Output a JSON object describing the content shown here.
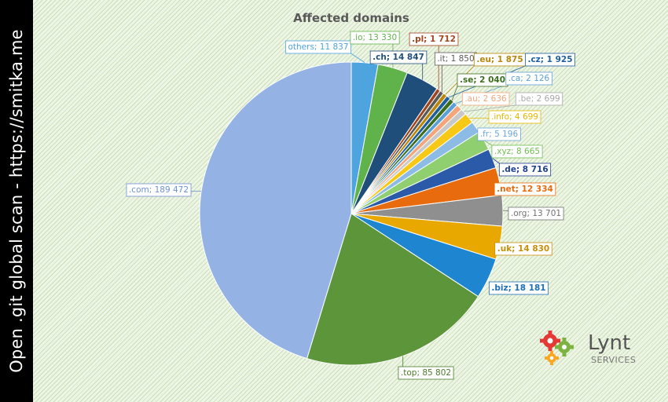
{
  "watermark": "Open .git global scan - https://smitka.me",
  "logo": {
    "word": "Lynt",
    "sub": "SERVICES",
    "icon": "gears-icon"
  },
  "chart_data": {
    "type": "pie",
    "title": "Affected domains",
    "legend": "none",
    "data_label_format": "name; value",
    "slices": [
      {
        "name": "others",
        "value": 11837,
        "color": "#4ea4de",
        "label_color": "#4ea4de",
        "bold": false
      },
      {
        "name": ".io",
        "value": 13330,
        "color": "#5fb34a",
        "label_color": "#5fb34a",
        "bold": false
      },
      {
        "name": ".ch",
        "value": 14847,
        "color": "#1f4e7a",
        "label_color": "#1f4e7a",
        "bold": true
      },
      {
        "name": ".pl",
        "value": 1712,
        "color": "#a0451d",
        "label_color": "#a0451d",
        "bold": true
      },
      {
        "name": ".it",
        "value": 1850,
        "color": "#5a5a5a",
        "label_color": "#5a5a5a",
        "bold": false
      },
      {
        "name": ".eu",
        "value": 1875,
        "color": "#b8860b",
        "label_color": "#b8860b",
        "bold": true
      },
      {
        "name": ".cz",
        "value": 1925,
        "color": "#1f5f9f",
        "label_color": "#1f5f9f",
        "bold": true
      },
      {
        "name": ".se",
        "value": 2040,
        "color": "#3c6e1e",
        "label_color": "#3c6e1e",
        "bold": true
      },
      {
        "name": ".ca",
        "value": 2126,
        "color": "#5aa0d8",
        "label_color": "#5aa0d8",
        "bold": false
      },
      {
        "name": ".au",
        "value": 2636,
        "color": "#f4a57a",
        "label_color": "#f4a57a",
        "bold": false
      },
      {
        "name": ".be",
        "value": 2699,
        "color": "#c8c8c8",
        "label_color": "#a8a8a8",
        "bold": false
      },
      {
        "name": ".info",
        "value": 4699,
        "color": "#f7c815",
        "label_color": "#e6b800",
        "bold": false
      },
      {
        "name": ".fr",
        "value": 5196,
        "color": "#8cbbe6",
        "label_color": "#6aa6dc",
        "bold": false
      },
      {
        "name": ".xyz",
        "value": 8665,
        "color": "#8fcf6f",
        "label_color": "#6fbf4f",
        "bold": false
      },
      {
        "name": ".de",
        "value": 8716,
        "color": "#2a5aa8",
        "label_color": "#1f3f8f",
        "bold": true
      },
      {
        "name": ".net",
        "value": 12334,
        "color": "#e86c0e",
        "label_color": "#e86c0e",
        "bold": true
      },
      {
        "name": ".org",
        "value": 13701,
        "color": "#8f8f8f",
        "label_color": "#707070",
        "bold": false
      },
      {
        "name": ".uk",
        "value": 14830,
        "color": "#e8a800",
        "label_color": "#c8900a",
        "bold": true
      },
      {
        "name": ".biz",
        "value": 18181,
        "color": "#1e86d0",
        "label_color": "#1e6fb5",
        "bold": true
      },
      {
        "name": ".top",
        "value": 85802,
        "color": "#5d963a",
        "label_color": "#4a7a2a",
        "bold": false
      },
      {
        "name": ".com",
        "value": 189472,
        "color": "#94b3e4",
        "label_color": "#6f92cf",
        "bold": false
      }
    ]
  }
}
